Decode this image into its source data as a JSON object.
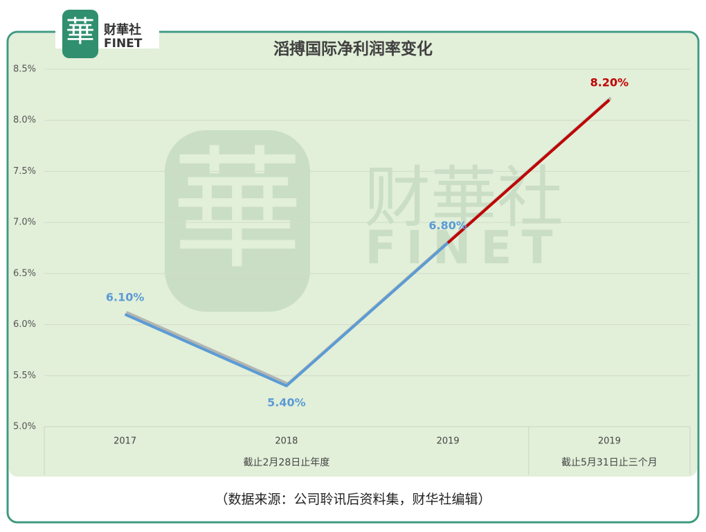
{
  "logo": {
    "mark": "華",
    "name": "财華社",
    "brand": "FINET"
  },
  "chart_data": {
    "type": "line",
    "title": "滔搏国际净利润率变化",
    "categories": [
      "2017",
      "2018",
      "2019",
      "2019"
    ],
    "category_groups": [
      "截止2月28日止年度",
      "截止2月28日止年度",
      "截止2月28日止年度",
      "截止5月31日止三个月"
    ],
    "series": [
      {
        "name": "净利润率",
        "color": "#5b9bd5",
        "point_colors": [
          "#5b9bd5",
          "#5b9bd5",
          "#5b9bd5",
          "#c00000"
        ],
        "values": [
          6.1,
          5.4,
          6.8,
          8.2
        ],
        "value_labels": [
          "6.10%",
          "5.40%",
          "6.80%",
          "8.20%"
        ]
      }
    ],
    "ylim": [
      5.0,
      8.5
    ],
    "yticks": [
      {
        "value": 5.0,
        "label": "5.0%"
      },
      {
        "value": 5.5,
        "label": "5.5%"
      },
      {
        "value": 6.0,
        "label": "6.0%"
      },
      {
        "value": 6.5,
        "label": "6.5%"
      },
      {
        "value": 7.0,
        "label": "7.0%"
      },
      {
        "value": 7.5,
        "label": "7.5%"
      },
      {
        "value": 8.0,
        "label": "8.0%"
      },
      {
        "value": 8.5,
        "label": "8.5%"
      }
    ],
    "grid": true,
    "source": "（数据来源：公司聆讯后资料集，财华社编辑）"
  }
}
